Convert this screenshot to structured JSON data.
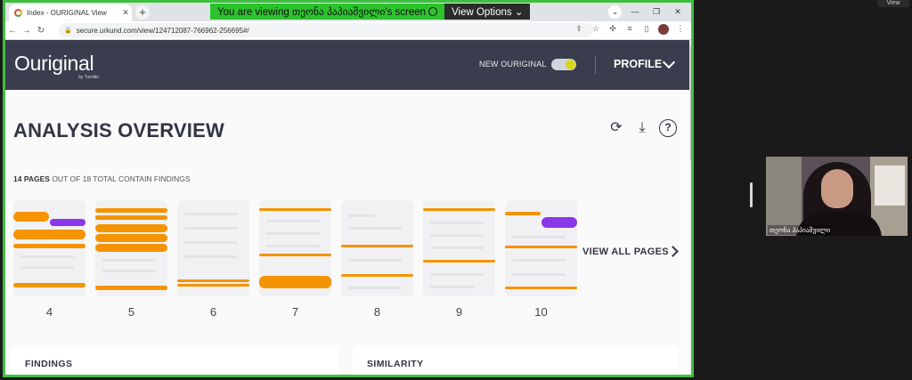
{
  "browser": {
    "tab_title": "Index - OURIGINAL View",
    "tab_close": "✕",
    "new_tab": "+",
    "url": "secure.urkund.com/view/124712087-766962-256695#/"
  },
  "share_banner": {
    "viewing_text": "You are viewing თეონა პაპიაშვილი's screen",
    "view_options": "View Options"
  },
  "app": {
    "logo": "Ouriginal",
    "logo_sub": "by Turnitin",
    "new_ouriginal_label": "NEW OURIGINAL",
    "new_ouriginal_on": true,
    "profile_label": "PROFILE",
    "toggle_color": "#d6d61a",
    "header_bg": "#3a3d4d"
  },
  "overview": {
    "title": "ANALYSIS OVERVIEW",
    "pages_count": "14 PAGES",
    "pages_rest": " OUT OF 18 TOTAL CONTAIN FINDINGS",
    "view_all": "VIEW ALL PAGES",
    "thumbnails": [
      {
        "page": "4"
      },
      {
        "page": "5"
      },
      {
        "page": "6"
      },
      {
        "page": "7"
      },
      {
        "page": "8"
      },
      {
        "page": "9"
      },
      {
        "page": "10"
      }
    ],
    "finding_color": "#f59300",
    "secondary_color": "#8b36e8"
  },
  "cards": {
    "findings": "FINDINGS",
    "similarity": "SIMILARITY"
  },
  "participant": {
    "name": "თეონა პაპიაშვილი",
    "view_label": "View"
  }
}
